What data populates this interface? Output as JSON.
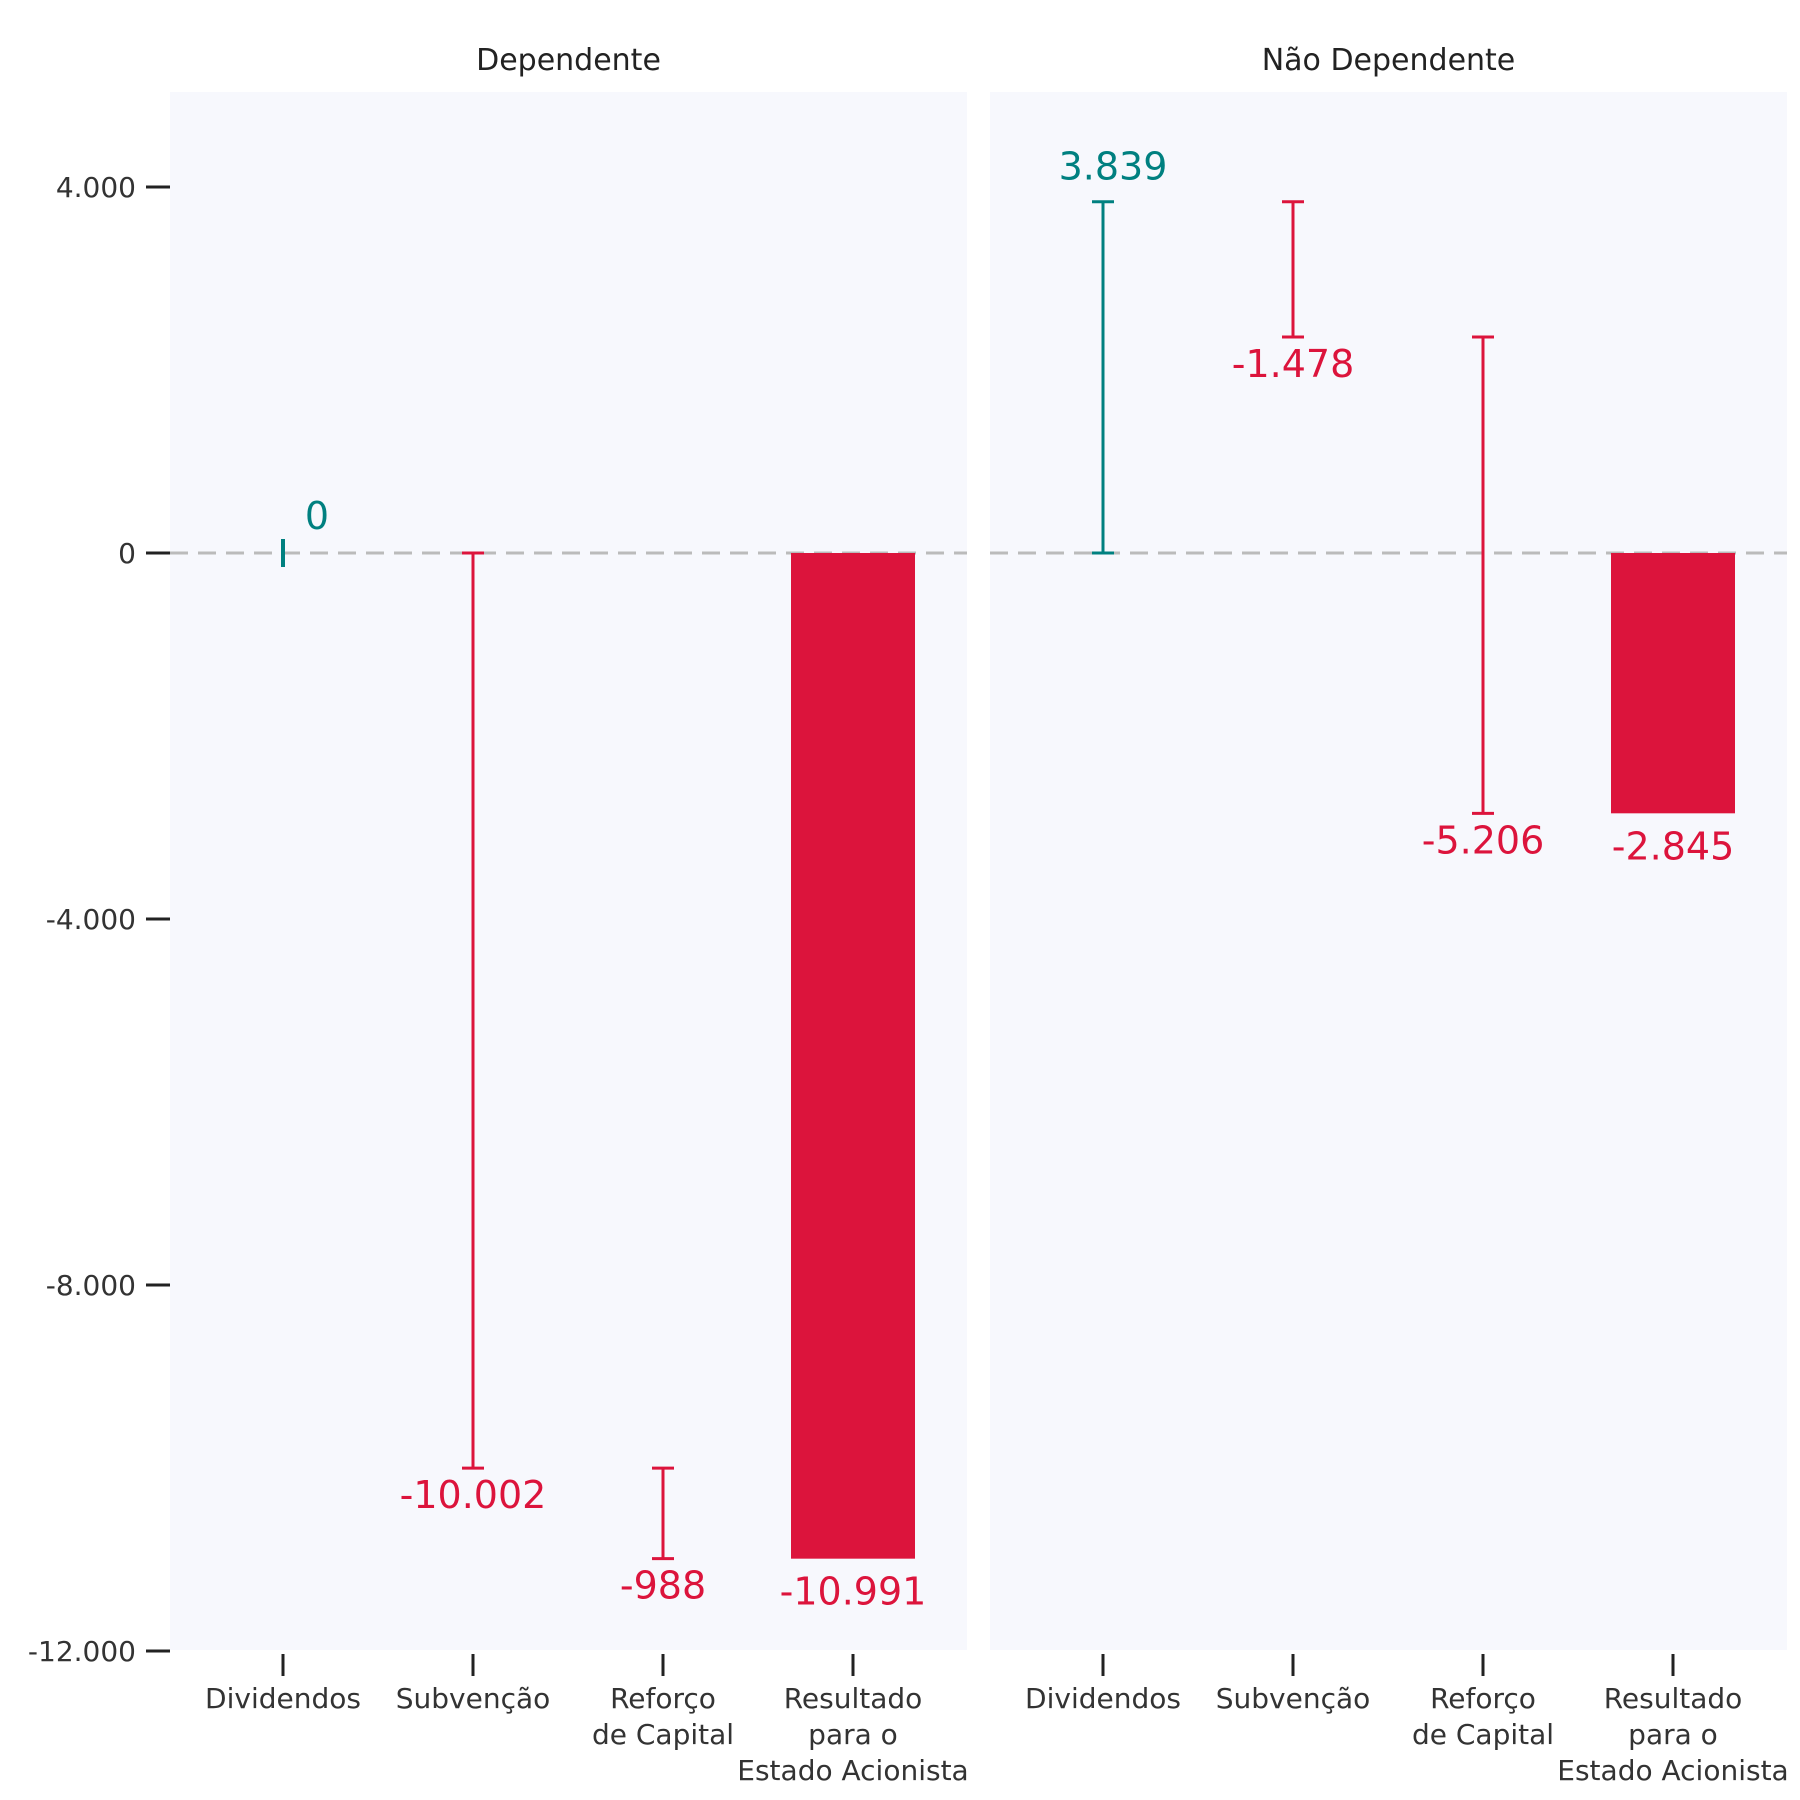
{
  "chart_data": {
    "type": "bar",
    "subtype": "waterfall",
    "ylim": [
      -12000,
      5000
    ],
    "yticks": [
      4000,
      0,
      -4000,
      -8000,
      -12000
    ],
    "ytick_labels": [
      "4.000",
      "0",
      "-4.000",
      "-8.000",
      "-12.000"
    ],
    "zero_line": "dashed",
    "colors": {
      "positive": "#008080",
      "negative": "#DC143C",
      "panel_bg": "#F7F8FD",
      "zero_line": "#BBBBBB"
    },
    "categories": [
      [
        "Dividendos"
      ],
      [
        "Subvenção"
      ],
      [
        "Reforço",
        "de Capital"
      ],
      [
        "Resultado",
        "para o",
        "Estado Acionista"
      ]
    ],
    "panels": [
      {
        "title": "Dependente",
        "steps": [
          {
            "category": "Dividendos",
            "start": 0,
            "end": 0,
            "value": 0,
            "label": "0",
            "kind": "step"
          },
          {
            "category": "Subvenção",
            "start": 0,
            "end": -10002,
            "value": -10002,
            "label": "-10.002",
            "kind": "step"
          },
          {
            "category": "Reforço de Capital",
            "start": -10002,
            "end": -10991,
            "value": -988,
            "label": "-988",
            "kind": "step"
          },
          {
            "category": "Resultado para o Estado Acionista",
            "start": 0,
            "end": -10991,
            "value": -10991,
            "label": "-10.991",
            "kind": "total"
          }
        ]
      },
      {
        "title": "Não Dependente",
        "steps": [
          {
            "category": "Dividendos",
            "start": 0,
            "end": 3839,
            "value": 3839,
            "label": "3.839",
            "kind": "step"
          },
          {
            "category": "Subvenção",
            "start": 3839,
            "end": 2361,
            "value": -1478,
            "label": "-1.478",
            "kind": "step"
          },
          {
            "category": "Reforço de Capital",
            "start": 2361,
            "end": -2845,
            "value": -5206,
            "label": "-5.206",
            "kind": "step"
          },
          {
            "category": "Resultado para o Estado Acionista",
            "start": 0,
            "end": -2845,
            "value": -2845,
            "label": "-2.845",
            "kind": "total"
          }
        ]
      }
    ]
  }
}
